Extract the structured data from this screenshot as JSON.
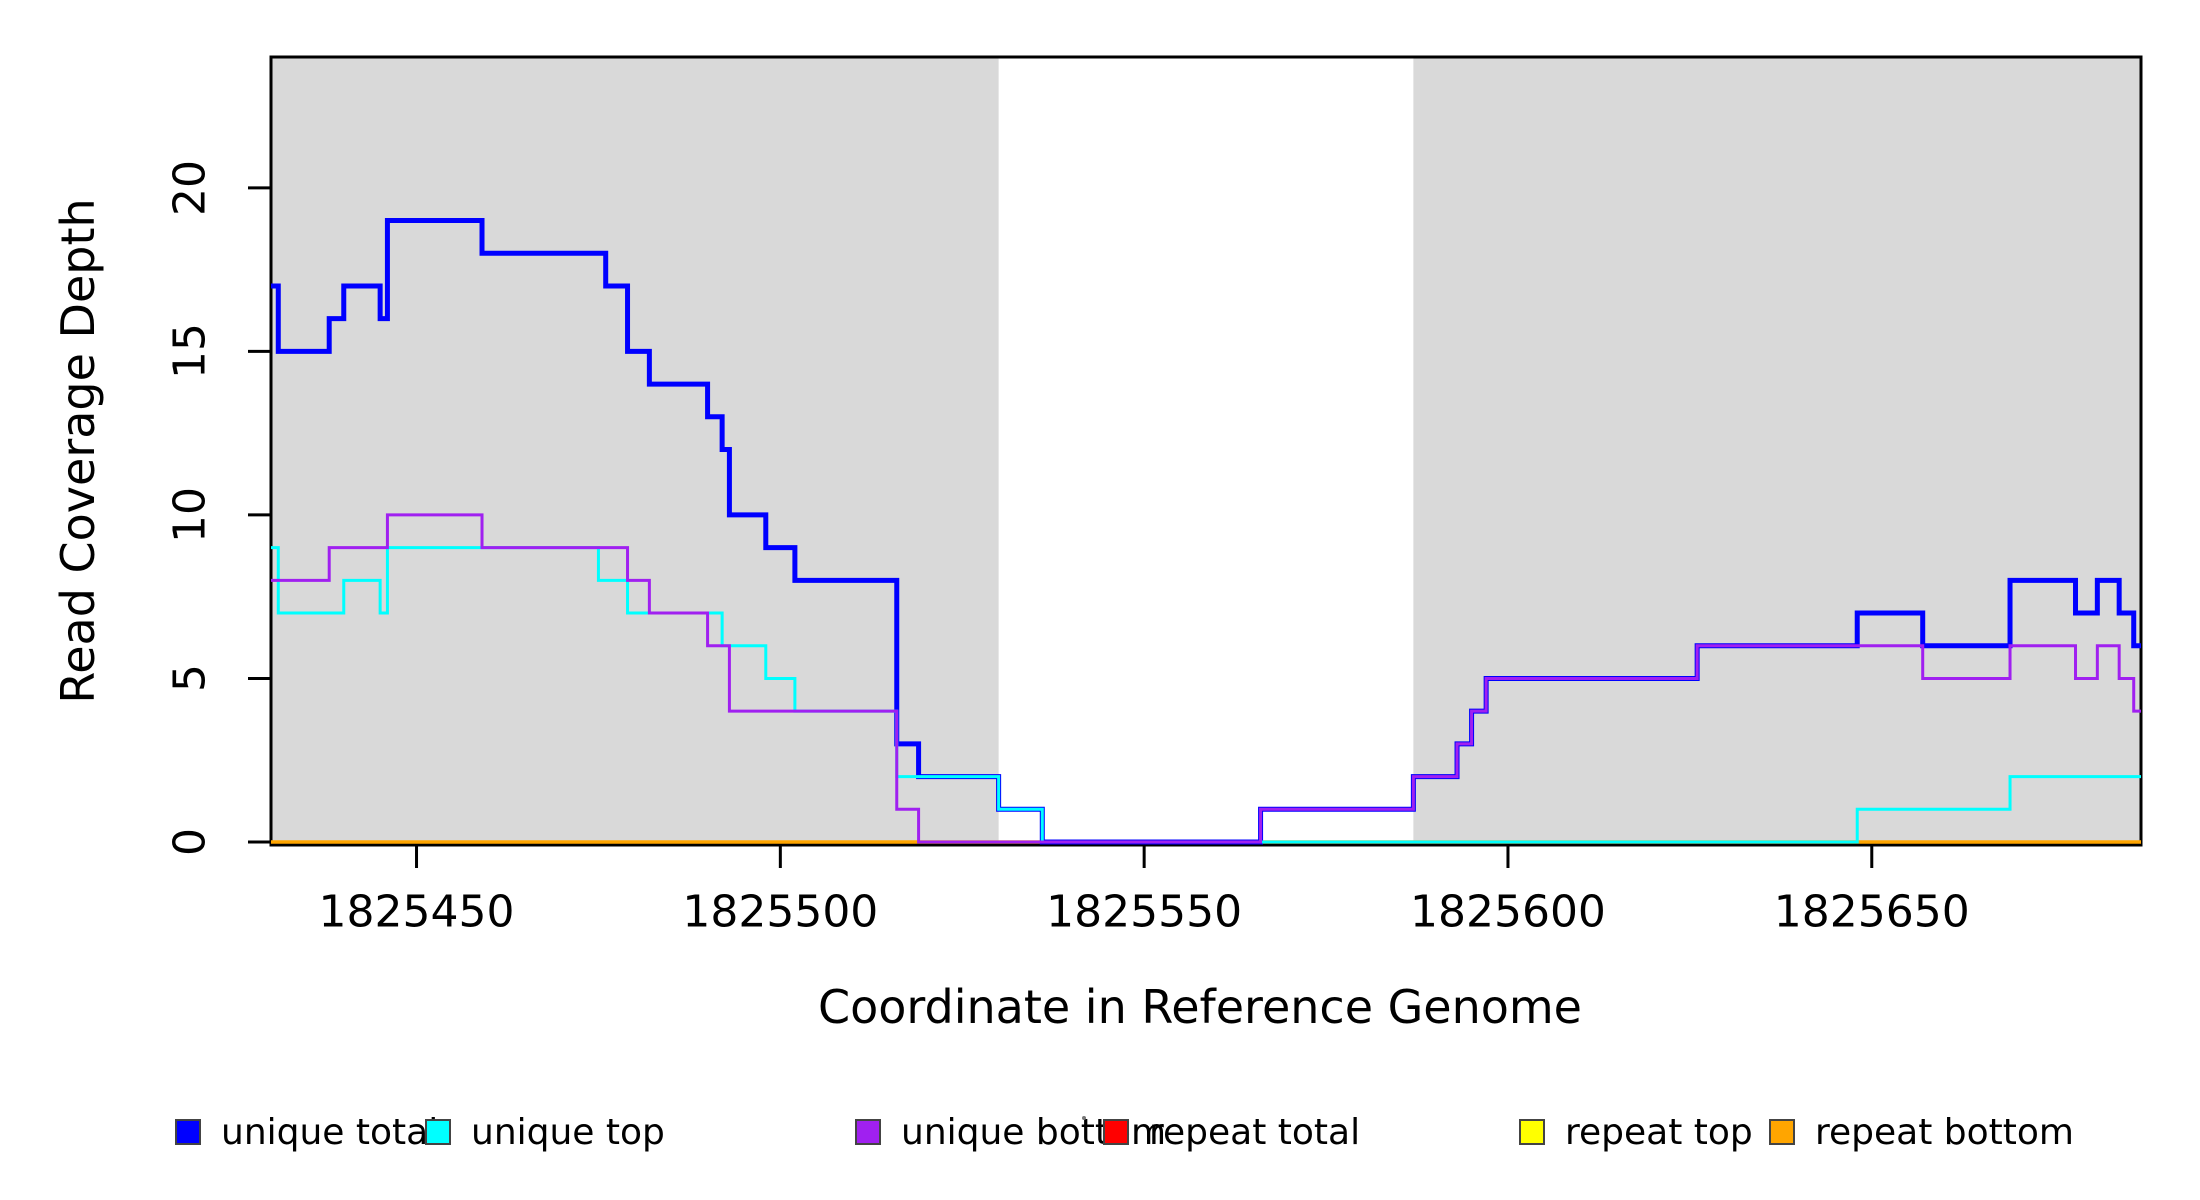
{
  "axes": {
    "x_title": "Coordinate in Reference Genome",
    "y_title": "Read Coverage Depth"
  },
  "chart_data": {
    "type": "line",
    "style": "step",
    "title": "",
    "xlabel": "Coordinate in Reference Genome",
    "ylabel": "Read Coverage Depth",
    "xlim": [
      1825430,
      1825687
    ],
    "ylim": [
      0,
      24
    ],
    "x_ticks": [
      1825450,
      1825500,
      1825550,
      1825600,
      1825650
    ],
    "y_ticks": [
      0,
      5,
      10,
      15,
      20
    ],
    "grid": false,
    "plot_bg": "#FFFFFF",
    "shaded_regions": [
      {
        "x0": 1825430,
        "x1": 1825530,
        "color": "#D9D9D9"
      },
      {
        "x0": 1825587,
        "x1": 1825687,
        "color": "#D9D9D9"
      }
    ],
    "series": [
      {
        "name": "repeat total",
        "color": "#FF0000",
        "width": 3,
        "points": [
          [
            1825430,
            0
          ],
          [
            1825687,
            0
          ]
        ]
      },
      {
        "name": "repeat top",
        "color": "#FFFF00",
        "width": 3,
        "points": [
          [
            1825430,
            0
          ],
          [
            1825687,
            0
          ]
        ]
      },
      {
        "name": "repeat bottom",
        "color": "#FFA500",
        "width": 3.5,
        "points": [
          [
            1825430,
            0
          ],
          [
            1825687,
            0
          ]
        ]
      },
      {
        "name": "unique total",
        "color": "#0000FF",
        "width": 5,
        "points": [
          [
            1825430,
            17
          ],
          [
            1825431,
            15
          ],
          [
            1825438,
            16
          ],
          [
            1825440,
            17
          ],
          [
            1825445,
            16
          ],
          [
            1825446,
            19
          ],
          [
            1825459,
            18
          ],
          [
            1825476,
            17
          ],
          [
            1825479,
            15
          ],
          [
            1825482,
            14
          ],
          [
            1825490,
            13
          ],
          [
            1825492,
            12
          ],
          [
            1825493,
            10
          ],
          [
            1825498,
            9
          ],
          [
            1825502,
            8
          ],
          [
            1825516,
            3
          ],
          [
            1825519,
            2
          ],
          [
            1825530,
            1
          ],
          [
            1825536,
            0
          ],
          [
            1825566,
            1
          ],
          [
            1825587,
            2
          ],
          [
            1825593,
            3
          ],
          [
            1825595,
            4
          ],
          [
            1825597,
            5
          ],
          [
            1825626,
            6
          ],
          [
            1825648,
            7
          ],
          [
            1825657,
            6
          ],
          [
            1825669,
            8
          ],
          [
            1825678,
            7
          ],
          [
            1825681,
            8
          ],
          [
            1825684,
            7
          ],
          [
            1825686,
            6
          ],
          [
            1825687,
            6
          ]
        ]
      },
      {
        "name": "unique top",
        "color": "#00FFFF",
        "width": 3,
        "points": [
          [
            1825430,
            9
          ],
          [
            1825431,
            7
          ],
          [
            1825440,
            8
          ],
          [
            1825445,
            7
          ],
          [
            1825446,
            9
          ],
          [
            1825475,
            8
          ],
          [
            1825479,
            7
          ],
          [
            1825492,
            6
          ],
          [
            1825498,
            5
          ],
          [
            1825502,
            4
          ],
          [
            1825516,
            2
          ],
          [
            1825530,
            1
          ],
          [
            1825536,
            0
          ],
          [
            1825648,
            1
          ],
          [
            1825669,
            2
          ],
          [
            1825687,
            2
          ]
        ]
      },
      {
        "name": "unique bottom",
        "color": "#A020F0",
        "width": 3,
        "points": [
          [
            1825430,
            8
          ],
          [
            1825438,
            9
          ],
          [
            1825446,
            10
          ],
          [
            1825459,
            9
          ],
          [
            1825479,
            8
          ],
          [
            1825482,
            7
          ],
          [
            1825490,
            6
          ],
          [
            1825493,
            4
          ],
          [
            1825516,
            1
          ],
          [
            1825519,
            0
          ],
          [
            1825566,
            1
          ],
          [
            1825587,
            2
          ],
          [
            1825593,
            3
          ],
          [
            1825595,
            4
          ],
          [
            1825597,
            5
          ],
          [
            1825626,
            6
          ],
          [
            1825657,
            5
          ],
          [
            1825669,
            6
          ],
          [
            1825678,
            5
          ],
          [
            1825681,
            6
          ],
          [
            1825684,
            5
          ],
          [
            1825686,
            4
          ],
          [
            1825687,
            4
          ]
        ]
      }
    ],
    "legend_position": "bottom"
  },
  "legend": {
    "entries": [
      {
        "label": "unique total",
        "color": "#0000FF"
      },
      {
        "label": "unique top",
        "color": "#00FFFF"
      },
      {
        "label": "unique bottom",
        "color": "#A020F0"
      },
      {
        "label": "repeat total",
        "color": "#FF0000"
      },
      {
        "label": "repeat top",
        "color": "#FFFF00"
      },
      {
        "label": "repeat bottom",
        "color": "#FFA500"
      }
    ]
  }
}
